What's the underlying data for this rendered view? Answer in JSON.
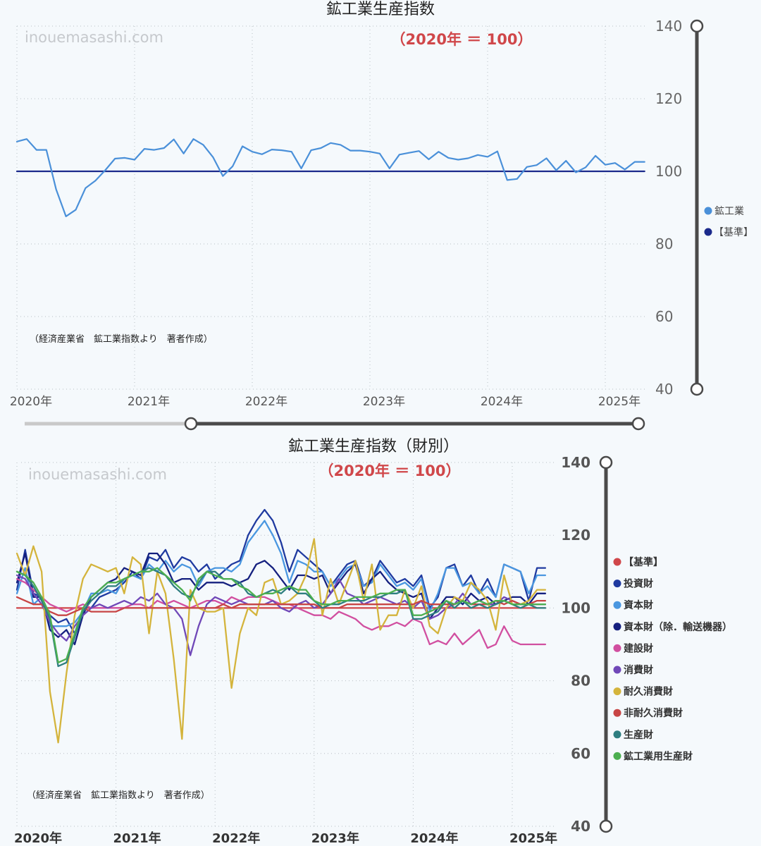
{
  "charts": {
    "overall": {
      "title": "鉱工業生産指数",
      "subtitle": "（2020年 ＝ 100）",
      "watermark": "inouemasashi.com",
      "source_note": "（経済産業省　鉱工業指数より　著者作成）",
      "legend": [
        "鉱工業",
        "【基準】"
      ]
    },
    "by_goods": {
      "title": "鉱工業生産指数（財別）",
      "subtitle": "（2020年 ＝ 100）",
      "watermark": "inouemasashi.com",
      "source_note": "（経済産業省　鉱工業指数より　著者作成）",
      "legend": [
        "【基準】",
        "投資財",
        "資本財",
        "資本財（除．輸送機器）",
        "建設財",
        "消費財",
        "耐久消費財",
        "非耐久消費財",
        "生産財",
        "鉱工業用生産財"
      ]
    }
  },
  "chart_data": [
    {
      "type": "line",
      "title": "鉱工業生産指数",
      "subtitle": "（2020年 ＝ 100）",
      "ylim": [
        40,
        140
      ],
      "yticks": [
        40,
        60,
        80,
        100,
        120,
        140
      ],
      "xticks": [
        "2020年",
        "2021年",
        "2022年",
        "2023年",
        "2024年",
        "2025年"
      ],
      "x_start": "2020-01",
      "grid": true,
      "legend_position": "right",
      "series": [
        {
          "name": "鉱工業",
          "color": "#4a90d9",
          "values": [
            108.2,
            108.9,
            105.9,
            105.9,
            95.0,
            87.6,
            89.4,
            95.4,
            97.4,
            100.3,
            103.5,
            103.7,
            103.2,
            106.2,
            105.9,
            106.4,
            108.8,
            104.9,
            108.9,
            107.3,
            103.9,
            98.7,
            101.4,
            106.9,
            105.4,
            104.7,
            106.0,
            105.8,
            105.4,
            100.8,
            105.8,
            106.4,
            107.8,
            107.3,
            105.7,
            105.7,
            105.4,
            104.9,
            100.8,
            104.6,
            105.1,
            105.6,
            103.3,
            105.4,
            103.7,
            103.2,
            103.6,
            104.5,
            104.0,
            105.5,
            97.6,
            97.9,
            101.2,
            101.7,
            103.6,
            100.3,
            102.9,
            99.7,
            101.1,
            104.3,
            101.8,
            102.3,
            100.5,
            102.6,
            102.6
          ]
        },
        {
          "name": "【基準】",
          "color": "#1b2a8c",
          "values": [
            100,
            100,
            100,
            100,
            100,
            100,
            100,
            100,
            100,
            100,
            100,
            100,
            100,
            100,
            100,
            100,
            100,
            100,
            100,
            100,
            100,
            100,
            100,
            100,
            100,
            100,
            100,
            100,
            100,
            100,
            100,
            100,
            100,
            100,
            100,
            100,
            100,
            100,
            100,
            100,
            100,
            100,
            100,
            100,
            100,
            100,
            100,
            100,
            100,
            100,
            100,
            100,
            100,
            100,
            100,
            100,
            100,
            100,
            100,
            100,
            100,
            100,
            100,
            100,
            100
          ]
        }
      ]
    },
    {
      "type": "line",
      "title": "鉱工業生産指数（財別）",
      "subtitle": "（2020年 ＝ 100）",
      "ylim": [
        40,
        140
      ],
      "yticks": [
        40,
        60,
        80,
        100,
        120,
        140
      ],
      "xticks": [
        "2020年",
        "2021年",
        "2022年",
        "2023年",
        "2024年",
        "2025年"
      ],
      "x_start": "2020-01",
      "grid": true,
      "legend_position": "right",
      "series": [
        {
          "name": "【基準】",
          "color": "#d0474a",
          "values": [
            100,
            100,
            100,
            100,
            100,
            100,
            100,
            100,
            100,
            100,
            100,
            100,
            100,
            100,
            100,
            100,
            100,
            100,
            100,
            100,
            100,
            100,
            100,
            100,
            100,
            100,
            100,
            100,
            100,
            100,
            100,
            100,
            100,
            100,
            100,
            100,
            100,
            100,
            100,
            100,
            100,
            100,
            100,
            100,
            100,
            100,
            100,
            100,
            100,
            100,
            100,
            100,
            100,
            100,
            100,
            100,
            100,
            100,
            100,
            100,
            100,
            100,
            100,
            100,
            100
          ]
        },
        {
          "name": "投資財",
          "color": "#1f3aa0",
          "values": [
            105,
            116,
            104,
            103,
            98,
            96,
            97,
            93,
            98,
            100,
            103,
            104,
            105,
            107,
            110,
            108,
            114,
            113,
            116,
            111,
            114,
            113,
            110,
            112,
            108,
            110,
            112,
            113,
            120,
            124,
            127,
            124,
            118,
            110,
            116,
            114,
            112,
            110,
            106,
            109,
            112,
            113,
            106,
            108,
            113,
            110,
            107,
            108,
            106,
            109,
            100,
            103,
            111,
            112,
            106,
            109,
            104,
            108,
            103,
            112,
            111,
            110,
            102,
            111,
            111
          ]
        },
        {
          "name": "資本財",
          "color": "#4a97e0",
          "values": [
            104,
            111,
            101,
            103,
            95,
            95,
            95,
            96,
            99,
            104,
            104,
            105,
            104,
            108,
            109,
            108,
            112,
            110,
            113,
            110,
            112,
            111,
            106,
            110,
            111,
            111,
            110,
            112,
            118,
            121,
            124,
            120,
            115,
            107,
            113,
            112,
            110,
            110,
            106,
            108,
            111,
            112,
            106,
            107,
            112,
            109,
            106,
            107,
            105,
            108,
            99,
            104,
            111,
            111,
            106,
            107,
            104,
            106,
            103,
            112,
            111,
            110,
            104,
            109,
            109
          ]
        },
        {
          "name": "資本財（除．輸送機器）",
          "color": "#15207f",
          "values": [
            107,
            115,
            103,
            103,
            94,
            92,
            94,
            90,
            98,
            103,
            105,
            107,
            108,
            111,
            110,
            109,
            115,
            115,
            112,
            107,
            108,
            108,
            105,
            107,
            107,
            107,
            106,
            107,
            108,
            112,
            113,
            111,
            108,
            105,
            109,
            109,
            108,
            109,
            104,
            107,
            110,
            112,
            104,
            108,
            110,
            107,
            105,
            104,
            103,
            104,
            97,
            100,
            103,
            103,
            101,
            104,
            102,
            103,
            101,
            102,
            103,
            103,
            101,
            104,
            104
          ]
        },
        {
          "name": "建設財",
          "color": "#d14fa0",
          "values": [
            108,
            107,
            105,
            103,
            101,
            100,
            99,
            100,
            101,
            100,
            100,
            100,
            100,
            100,
            101,
            101,
            100,
            102,
            101,
            102,
            101,
            100,
            101,
            102,
            102,
            101,
            103,
            102,
            103,
            103,
            103,
            102,
            101,
            101,
            100,
            99,
            98,
            98,
            97,
            99,
            98,
            97,
            95,
            94,
            95,
            95,
            96,
            95,
            97,
            96,
            90,
            91,
            90,
            93,
            90,
            92,
            94,
            89,
            90,
            95,
            91,
            90,
            90,
            90,
            90
          ]
        },
        {
          "name": "消費財",
          "color": "#7048b8",
          "values": [
            109,
            108,
            104,
            101,
            96,
            93,
            91,
            95,
            98,
            100,
            101,
            100,
            101,
            102,
            101,
            103,
            102,
            104,
            101,
            100,
            97,
            87,
            95,
            101,
            103,
            102,
            101,
            102,
            101,
            101,
            101,
            102,
            100,
            99,
            101,
            102,
            100,
            101,
            104,
            108,
            104,
            103,
            101,
            102,
            103,
            102,
            101,
            102,
            100,
            102,
            97,
            98,
            100,
            101,
            104,
            101,
            102,
            101,
            101,
            103,
            102,
            101,
            101,
            101,
            101
          ]
        },
        {
          "name": "耐久消費財",
          "color": "#d4b43c",
          "values": [
            115,
            109,
            117,
            110,
            77,
            63,
            82,
            98,
            108,
            112,
            111,
            110,
            111,
            104,
            114,
            112,
            93,
            110,
            104,
            86,
            64,
            105,
            100,
            99,
            99,
            100,
            78,
            93,
            100,
            98,
            107,
            108,
            101,
            102,
            104,
            109,
            119,
            98,
            108,
            101,
            107,
            113,
            102,
            112,
            94,
            98,
            98,
            105,
            100,
            106,
            95,
            93,
            100,
            103,
            102,
            107,
            105,
            102,
            94,
            109,
            101,
            101,
            102,
            105,
            105
          ]
        },
        {
          "name": "非耐久消費財",
          "color": "#c84545",
          "values": [
            103,
            102,
            101,
            101,
            99,
            98,
            98,
            99,
            100,
            99,
            99,
            99,
            99,
            100,
            100,
            100,
            100,
            100,
            100,
            100,
            100,
            100,
            100,
            100,
            100,
            101,
            100,
            101,
            101,
            101,
            101,
            101,
            101,
            101,
            101,
            101,
            101,
            100,
            100,
            100,
            101,
            101,
            101,
            101,
            101,
            101,
            101,
            101,
            101,
            102,
            101,
            101,
            101,
            101,
            102,
            101,
            101,
            101,
            102,
            101,
            102,
            101,
            101,
            102,
            102
          ]
        },
        {
          "name": "生産財",
          "color": "#2e7e80",
          "values": [
            110,
            109,
            106,
            102,
            97,
            84,
            85,
            92,
            99,
            102,
            104,
            106,
            106,
            108,
            109,
            110,
            111,
            110,
            109,
            106,
            104,
            103,
            107,
            110,
            110,
            108,
            108,
            107,
            104,
            103,
            104,
            105,
            104,
            106,
            104,
            104,
            102,
            100,
            101,
            101,
            102,
            102,
            102,
            103,
            103,
            104,
            104,
            105,
            97,
            97,
            98,
            99,
            102,
            100,
            102,
            100,
            101,
            100,
            101,
            102,
            101,
            100,
            101,
            100,
            100
          ]
        },
        {
          "name": "鉱工業用生産財",
          "color": "#4caf50",
          "values": [
            110,
            109,
            107,
            103,
            98,
            85,
            86,
            93,
            100,
            103,
            105,
            107,
            107,
            108,
            109,
            110,
            110,
            111,
            109,
            107,
            105,
            102,
            108,
            110,
            109,
            108,
            108,
            106,
            105,
            103,
            104,
            104,
            105,
            106,
            105,
            105,
            102,
            101,
            101,
            102,
            102,
            103,
            103,
            103,
            104,
            104,
            105,
            105,
            98,
            98,
            99,
            100,
            102,
            101,
            102,
            101,
            102,
            101,
            102,
            102,
            101,
            101,
            101,
            101,
            101
          ]
        }
      ]
    }
  ]
}
